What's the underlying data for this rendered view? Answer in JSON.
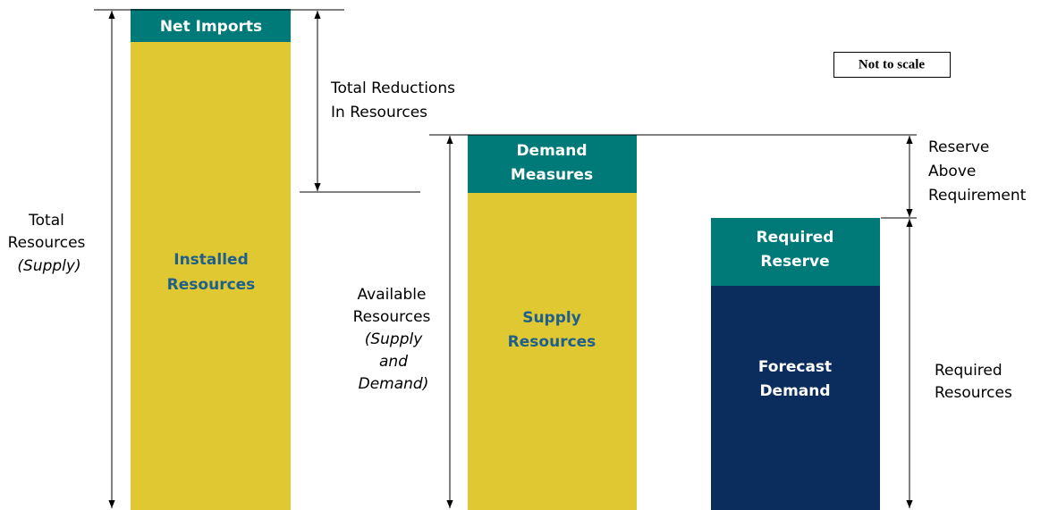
{
  "note": "Not to scale",
  "columns": [
    {
      "top": [
        "Net Imports"
      ],
      "bottom": [
        "Installed",
        "Resources"
      ]
    },
    {
      "top": [
        "Demand",
        "Measures"
      ],
      "bottom": [
        "Supply",
        "Resources"
      ]
    },
    {
      "top": [
        "Required",
        "Reserve"
      ],
      "bottom": [
        "Forecast",
        "Demand"
      ]
    }
  ],
  "annotations": {
    "total_resources": [
      "Total",
      "Resources",
      "(Supply)"
    ],
    "total_reductions": [
      "Total Reductions",
      "In Resources"
    ],
    "available_resources": [
      "Available",
      "Resources",
      "(Supply",
      "and",
      "Demand)"
    ],
    "reserve_above": [
      "Reserve",
      "Above",
      "Requirement"
    ],
    "required_resources": [
      "Required",
      "Resources"
    ]
  }
}
